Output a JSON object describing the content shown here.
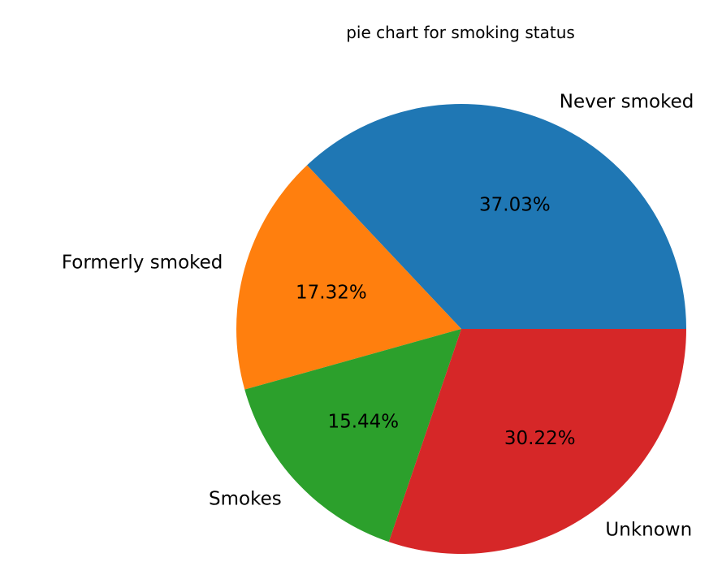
{
  "chart_data": {
    "type": "pie",
    "title": "pie chart for smoking status",
    "categories": [
      "Never smoked",
      "Formerly smoked",
      "Smokes",
      "Unknown"
    ],
    "values": [
      37.03,
      17.32,
      15.44,
      30.22
    ],
    "value_labels": [
      "37.03%",
      "17.32%",
      "15.44%",
      "30.22%"
    ],
    "colors": [
      "#1f77b4",
      "#ff7f0e",
      "#2ca02c",
      "#d62728"
    ],
    "start_angle": "east, counterclockwise",
    "legend": "none"
  }
}
